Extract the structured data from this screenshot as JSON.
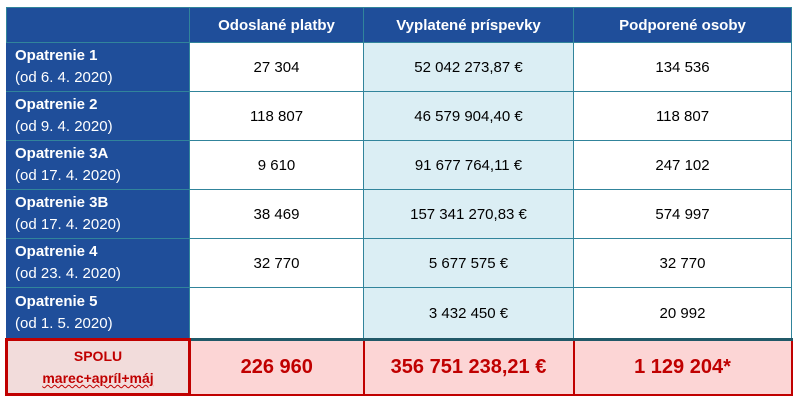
{
  "headers": [
    "",
    "Odoslané platby",
    "Vyplatené príspevky",
    "Podporené osoby"
  ],
  "rows": [
    {
      "title": "Opatrenie 1",
      "date": "(od 6. 4. 2020)",
      "payments": "27 304",
      "contributions": "52 042 273,87 €",
      "persons": "134 536"
    },
    {
      "title": "Opatrenie 2",
      "date": "(od 9. 4. 2020)",
      "payments": "118 807",
      "contributions": "46 579 904,40 €",
      "persons": "118 807"
    },
    {
      "title": "Opatrenie 3A",
      "date": "(od 17. 4. 2020)",
      "payments": "9 610",
      "contributions": "91 677 764,11 €",
      "persons": "247 102"
    },
    {
      "title": "Opatrenie 3B",
      "date": "(od 17. 4. 2020)",
      "payments": "38 469",
      "contributions": "157 341 270,83 €",
      "persons": "574 997"
    },
    {
      "title": "Opatrenie 4",
      "date": "(od 23. 4. 2020)",
      "payments": "32 770",
      "contributions": "5 677 575 €",
      "persons": "32 770"
    },
    {
      "title": "Opatrenie 5",
      "date": "(od 1. 5. 2020)",
      "payments": "",
      "contributions": "3 432 450 €",
      "persons": "20 992"
    }
  ],
  "total": {
    "title": "SPOLU",
    "subtitle": "marec+apríl+máj",
    "payments": "226 960",
    "contributions": "356 751 238,21 €",
    "persons": "1 129 204*"
  },
  "colors": {
    "header": "#1f4e9a",
    "highlight": "#dbeef4",
    "total_bg": "#fcd5d5",
    "total_text": "#c00000"
  }
}
